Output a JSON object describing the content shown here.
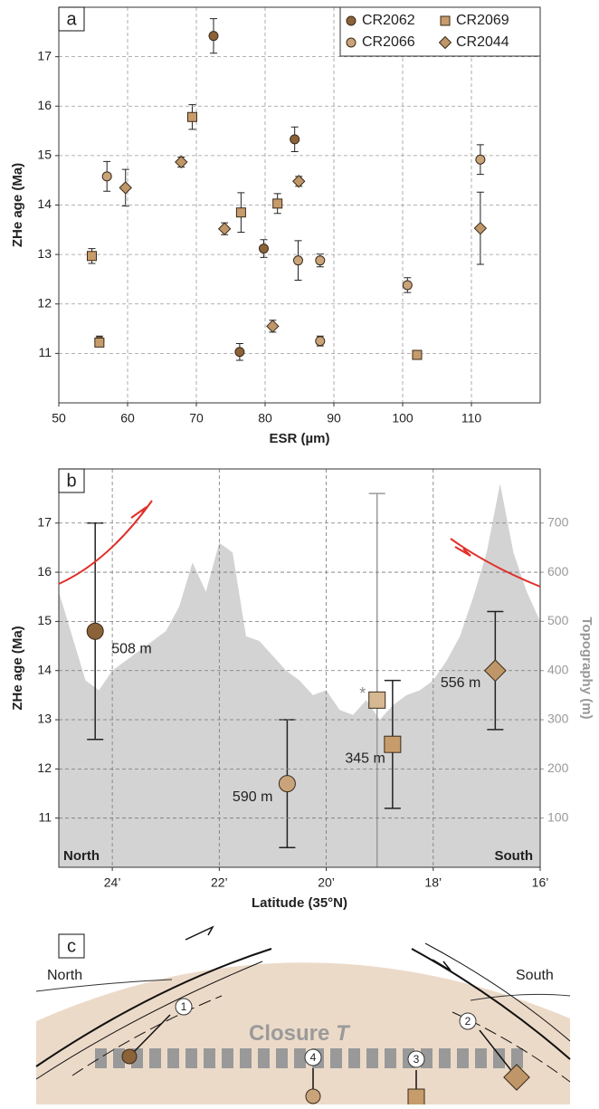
{
  "chart_data": [
    {
      "type": "scatter",
      "panel_label": "a",
      "xlabel": "ESR (µm)",
      "ylabel": "ZHe age (Ma)",
      "xlim": [
        50,
        120
      ],
      "xticks": [
        50,
        60,
        70,
        80,
        90,
        100,
        110
      ],
      "ylim": [
        10,
        18
      ],
      "yticks": [
        11,
        12,
        13,
        14,
        15,
        16,
        17
      ],
      "grid": true,
      "legend": "upper right",
      "series": [
        {
          "name": "CR2062",
          "color": "#8c6239",
          "marker": "circle",
          "x": [
            72.5,
            84.3,
            79.8,
            76.3
          ],
          "values": [
            17.42,
            15.33,
            13.12,
            11.03
          ],
          "errors": [
            0.35,
            0.25,
            0.18,
            0.17
          ]
        },
        {
          "name": "CR2066",
          "color": "#c9a47a",
          "marker": "circle",
          "x": [
            57,
            55.9,
            84.8,
            88,
            88,
            100.7,
            111.3
          ],
          "values": [
            14.58,
            11.25,
            12.88,
            12.88,
            11.25,
            12.38,
            14.92
          ],
          "errors": [
            0.3,
            0.1,
            0.4,
            0.13,
            0.1,
            0.15,
            0.3
          ]
        },
        {
          "name": "CR2069",
          "color": "#c79c6b",
          "marker": "square",
          "x": [
            54.8,
            69.4,
            76.5,
            81.8,
            55.9,
            102.1
          ],
          "values": [
            12.97,
            15.78,
            13.85,
            14.03,
            11.22,
            10.97
          ],
          "errors": [
            0.15,
            0.25,
            0.4,
            0.2,
            0.08,
            0.06
          ]
        },
        {
          "name": "CR2044",
          "color": "#bf9668",
          "marker": "diamond",
          "x": [
            59.7,
            67.8,
            74.1,
            84.9,
            81.1,
            111.3
          ],
          "values": [
            14.35,
            14.87,
            13.52,
            14.48,
            11.55,
            13.53
          ],
          "errors": [
            0.37,
            0.1,
            0.12,
            0.1,
            0.12,
            0.73
          ]
        }
      ]
    },
    {
      "type": "scatter",
      "panel_label": "b",
      "xlabel": "Latitude (35°N)",
      "ylabel": "ZHe age (Ma)",
      "y2label": "Topography (m)",
      "xlim": [
        25,
        16
      ],
      "xticks": [
        {
          "value": 24,
          "label": "24’"
        },
        {
          "value": 22,
          "label": "22’"
        },
        {
          "value": 20,
          "label": "20’"
        },
        {
          "value": 18,
          "label": "18’"
        },
        {
          "value": 16,
          "label": "16’"
        }
      ],
      "ylim": [
        10,
        18.1
      ],
      "yticks": [
        11,
        12,
        13,
        14,
        15,
        16,
        17
      ],
      "y2lim": [
        0,
        810
      ],
      "y2ticks": [
        100,
        200,
        300,
        400,
        500,
        600,
        700
      ],
      "grid": true,
      "corner_labels": [
        "North",
        "South"
      ],
      "series": [
        {
          "type": "area",
          "axis": "y2",
          "color": "#d3d3d3",
          "x": [
            25,
            24.75,
            24.5,
            24.25,
            24,
            23.75,
            23.5,
            23.25,
            23,
            22.75,
            22.5,
            22.25,
            22,
            21.75,
            21.5,
            21.25,
            21,
            20.75,
            20.5,
            20.25,
            20,
            19.75,
            19.5,
            19.25,
            19,
            18.75,
            18.5,
            18.25,
            18,
            17.75,
            17.5,
            17.25,
            17,
            16.75,
            16.5,
            16.25,
            16
          ],
          "values": [
            560,
            470,
            380,
            360,
            400,
            420,
            440,
            460,
            480,
            530,
            620,
            560,
            660,
            640,
            470,
            460,
            430,
            400,
            380,
            350,
            360,
            320,
            310,
            340,
            300,
            330,
            350,
            360,
            380,
            420,
            470,
            550,
            640,
            780,
            640,
            560,
            500
          ]
        },
        {
          "color": "#8c6239",
          "marker": "circle",
          "x": [
            24.32
          ],
          "values": [
            14.8
          ],
          "errors": [
            2.2
          ],
          "labels": [
            "508 m"
          ]
        },
        {
          "color": "#c9a47a",
          "marker": "circle",
          "x": [
            20.73
          ],
          "values": [
            11.7
          ],
          "errors": [
            1.3
          ],
          "labels": [
            "590 m"
          ]
        },
        {
          "color": "#c79c6b",
          "marker": "square",
          "x": [
            18.76
          ],
          "values": [
            12.5
          ],
          "errors": [
            1.3
          ],
          "labels": [
            "345 m"
          ]
        },
        {
          "color": "#bf9668",
          "marker": "diamond",
          "x": [
            16.84
          ],
          "values": [
            14.0
          ],
          "errors": [
            1.2
          ],
          "labels": [
            "556 m"
          ]
        },
        {
          "color": "#d6b892",
          "marker": "square",
          "errorbar_color": "#9a9a9a",
          "x": [
            19.05
          ],
          "values": [
            13.4
          ],
          "errors": [
            4.2
          ],
          "annotation": "*"
        }
      ]
    }
  ],
  "diagram": {
    "panel_label": "c",
    "north": "North",
    "south": "South",
    "closure": "Closure",
    "closure_symbol": "T",
    "markers": [
      "1",
      "2",
      "3",
      "4"
    ]
  }
}
